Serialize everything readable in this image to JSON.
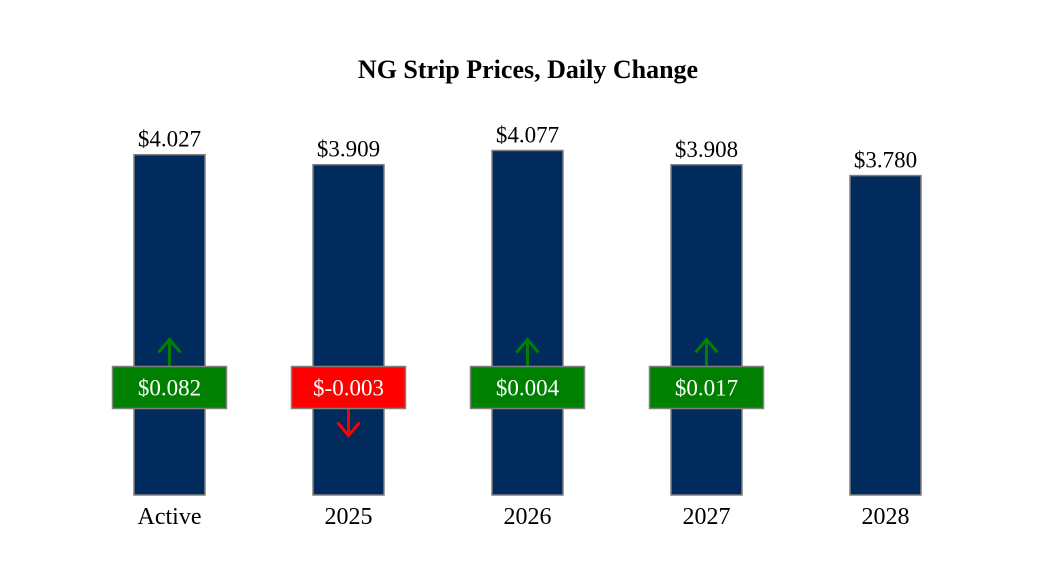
{
  "chart_data": {
    "type": "bar",
    "title": "NG Strip Prices, Daily Change",
    "xlabel": "",
    "ylabel": "",
    "ylim": [
      0,
      4.4
    ],
    "grid": false,
    "categories": [
      "Active",
      "2025",
      "2026",
      "2027",
      "2028"
    ],
    "values": [
      4.027,
      3.909,
      4.077,
      3.908,
      3.78
    ],
    "value_labels": [
      "$4.027",
      "$3.909",
      "$4.077",
      "$3.908",
      "$3.780"
    ],
    "changes": [
      0.082,
      -0.003,
      0.004,
      0.017,
      null
    ],
    "change_labels": [
      "$0.082",
      "$-0.003",
      "$0.004",
      "$0.017",
      ""
    ],
    "colors": {
      "bar": "#002b5c",
      "bar_border": "#808080",
      "positive": "#008000",
      "negative": "#ff0000"
    }
  }
}
